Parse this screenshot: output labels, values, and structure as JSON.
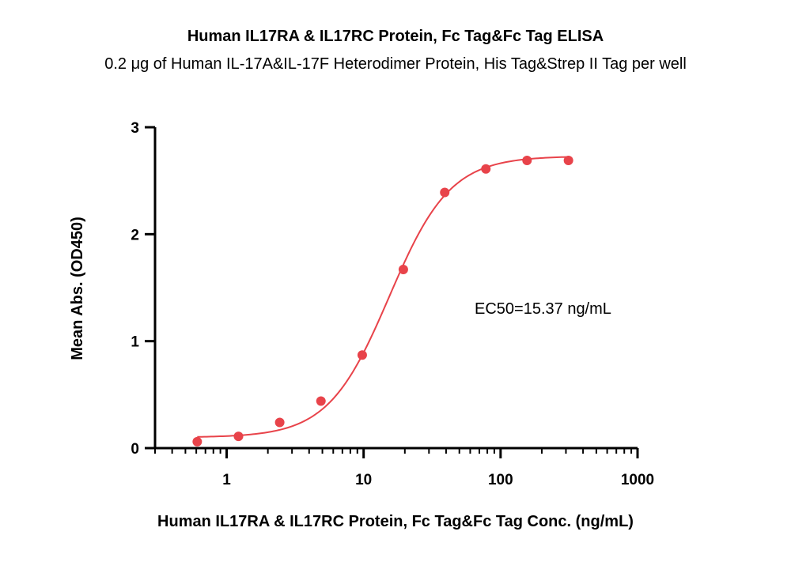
{
  "chart_data": {
    "type": "scatter",
    "title": "Human IL17RA & IL17RC Protein, Fc Tag&Fc Tag ELISA",
    "subtitle": "0.2 μg of Human IL-17A&IL-17F Heterodimer Protein, His Tag&Strep II Tag per well",
    "xlabel": "Human IL17RA & IL17RC Protein, Fc Tag&Fc Tag Conc. (ng/mL)",
    "ylabel": "Mean Abs. (OD450)",
    "x_scale": "log",
    "xlim": [
      0.3,
      1000
    ],
    "ylim": [
      0,
      3
    ],
    "x_ticks": [
      1,
      10,
      100,
      1000
    ],
    "x_tick_labels": [
      "1",
      "10",
      "100",
      "1000"
    ],
    "y_ticks": [
      0,
      1,
      2,
      3
    ],
    "y_tick_labels": [
      "0",
      "1",
      "2",
      "3"
    ],
    "grid": false,
    "color": "#e8434a",
    "series": [
      {
        "points": [
          {
            "x": 0.61,
            "y": 0.06
          },
          {
            "x": 1.22,
            "y": 0.11
          },
          {
            "x": 2.44,
            "y": 0.24
          },
          {
            "x": 4.88,
            "y": 0.44
          },
          {
            "x": 9.77,
            "y": 0.87
          },
          {
            "x": 19.5,
            "y": 1.67
          },
          {
            "x": 39.1,
            "y": 2.39
          },
          {
            "x": 78.1,
            "y": 2.61
          },
          {
            "x": 156,
            "y": 2.69
          },
          {
            "x": 313,
            "y": 2.69
          }
        ],
        "fit": {
          "model": "4PL",
          "bottom": 0.1,
          "top": 2.73,
          "ec50": 15.37,
          "hill": 1.95
        }
      }
    ],
    "annotations": [
      {
        "text": "EC50=15.37 ng/mL"
      }
    ]
  }
}
